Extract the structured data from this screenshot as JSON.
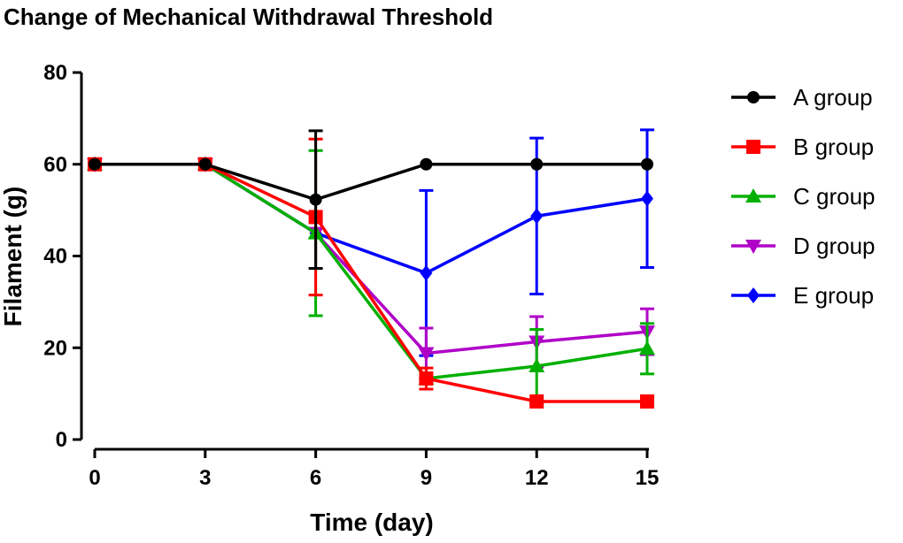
{
  "chart_data": {
    "type": "line",
    "title": "Change of Mechanical Withdrawal Threshold",
    "xlabel": "Time (day)",
    "ylabel": "Filament (g)",
    "x": [
      0,
      3,
      6,
      9,
      12,
      15
    ],
    "x_tick_labels": [
      "0",
      "3",
      "6",
      "9",
      "12",
      "15"
    ],
    "ylim": [
      0,
      80
    ],
    "y_ticks": [
      0,
      20,
      40,
      60,
      80
    ],
    "y_tick_labels": [
      "0",
      "20",
      "40",
      "60",
      "80"
    ],
    "legend_position": "right",
    "series": [
      {
        "name": "A group",
        "color": "#000000",
        "marker": "circle",
        "values": [
          60,
          60,
          52.3,
          60,
          60,
          60
        ],
        "err": [
          0,
          0,
          15,
          0,
          0,
          0
        ]
      },
      {
        "name": "B group",
        "color": "#ff0000",
        "marker": "square",
        "values": [
          60,
          60,
          48.5,
          13.3,
          8.3,
          8.3
        ],
        "err": [
          0,
          0,
          17,
          2.3,
          0,
          0
        ]
      },
      {
        "name": "C group",
        "color": "#00b000",
        "marker": "triangle-up",
        "values": [
          60,
          60,
          45,
          13.3,
          16,
          19.8
        ],
        "err": [
          0,
          0,
          18,
          0,
          8,
          5.5
        ]
      },
      {
        "name": "D group",
        "color": "#b000c8",
        "marker": "triangle-down",
        "values": [
          60,
          60,
          45,
          18.8,
          21.3,
          23.5
        ],
        "err": [
          0,
          0,
          0,
          5.5,
          5.5,
          5
        ]
      },
      {
        "name": "E group",
        "color": "#0000ff",
        "marker": "diamond",
        "values": [
          60,
          60,
          45,
          36.3,
          48.7,
          52.5
        ],
        "err": [
          0,
          0,
          0,
          18,
          17,
          15
        ]
      }
    ]
  }
}
